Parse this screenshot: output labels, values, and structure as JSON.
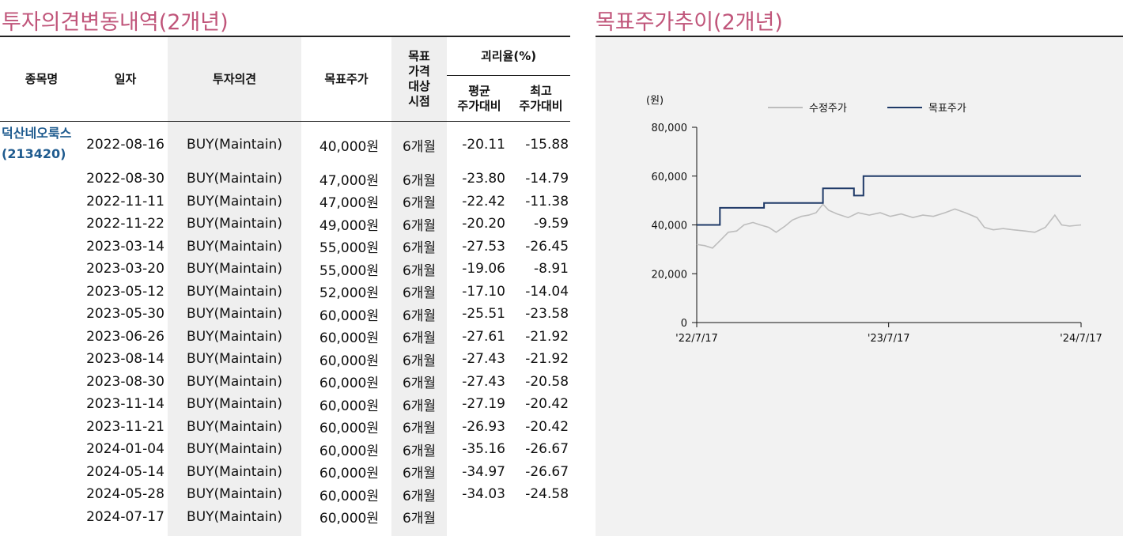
{
  "left_section": {
    "title": "투자의견변동내역(2개년)"
  },
  "right_section": {
    "title": "목표주가추이(2개년)"
  },
  "table": {
    "headers": {
      "name": "종목명",
      "date": "일자",
      "opinion": "투자의견",
      "target_price": "목표주가",
      "period_lines": [
        "목표",
        "가격",
        "대상",
        "시점"
      ],
      "disparity": "괴리율(%)",
      "avg_lines": [
        "평균",
        "주가대비"
      ],
      "max_lines": [
        "최고",
        "주가대비"
      ]
    },
    "company": {
      "name": "덕산네오룩스",
      "code": "(213420)"
    },
    "rows": [
      {
        "date": "2022-08-16",
        "opinion": "BUY(Maintain)",
        "target": "40,000원",
        "period": "6개월",
        "avg": "-20.11",
        "max": "-15.88"
      },
      {
        "date": "2022-08-30",
        "opinion": "BUY(Maintain)",
        "target": "47,000원",
        "period": "6개월",
        "avg": "-23.80",
        "max": "-14.79"
      },
      {
        "date": "2022-11-11",
        "opinion": "BUY(Maintain)",
        "target": "47,000원",
        "period": "6개월",
        "avg": "-22.42",
        "max": "-11.38"
      },
      {
        "date": "2022-11-22",
        "opinion": "BUY(Maintain)",
        "target": "49,000원",
        "period": "6개월",
        "avg": "-20.20",
        "max": "-9.59"
      },
      {
        "date": "2023-03-14",
        "opinion": "BUY(Maintain)",
        "target": "55,000원",
        "period": "6개월",
        "avg": "-27.53",
        "max": "-26.45"
      },
      {
        "date": "2023-03-20",
        "opinion": "BUY(Maintain)",
        "target": "55,000원",
        "period": "6개월",
        "avg": "-19.06",
        "max": "-8.91"
      },
      {
        "date": "2023-05-12",
        "opinion": "BUY(Maintain)",
        "target": "52,000원",
        "period": "6개월",
        "avg": "-17.10",
        "max": "-14.04"
      },
      {
        "date": "2023-05-30",
        "opinion": "BUY(Maintain)",
        "target": "60,000원",
        "period": "6개월",
        "avg": "-25.51",
        "max": "-23.58"
      },
      {
        "date": "2023-06-26",
        "opinion": "BUY(Maintain)",
        "target": "60,000원",
        "period": "6개월",
        "avg": "-27.61",
        "max": "-21.92"
      },
      {
        "date": "2023-08-14",
        "opinion": "BUY(Maintain)",
        "target": "60,000원",
        "period": "6개월",
        "avg": "-27.43",
        "max": "-21.92"
      },
      {
        "date": "2023-08-30",
        "opinion": "BUY(Maintain)",
        "target": "60,000원",
        "period": "6개월",
        "avg": "-27.43",
        "max": "-20.58"
      },
      {
        "date": "2023-11-14",
        "opinion": "BUY(Maintain)",
        "target": "60,000원",
        "period": "6개월",
        "avg": "-27.19",
        "max": "-20.42"
      },
      {
        "date": "2023-11-21",
        "opinion": "BUY(Maintain)",
        "target": "60,000원",
        "period": "6개월",
        "avg": "-26.93",
        "max": "-20.42"
      },
      {
        "date": "2024-01-04",
        "opinion": "BUY(Maintain)",
        "target": "60,000원",
        "period": "6개월",
        "avg": "-35.16",
        "max": "-26.67"
      },
      {
        "date": "2024-05-14",
        "opinion": "BUY(Maintain)",
        "target": "60,000원",
        "period": "6개월",
        "avg": "-34.97",
        "max": "-26.67"
      },
      {
        "date": "2024-05-28",
        "opinion": "BUY(Maintain)",
        "target": "60,000원",
        "period": "6개월",
        "avg": "-34.03",
        "max": "-24.58"
      },
      {
        "date": "2024-07-17",
        "opinion": "BUY(Maintain)",
        "target": "60,000원",
        "period": "6개월",
        "avg": "",
        "max": ""
      }
    ]
  },
  "colors": {
    "title": "#c0557a",
    "company": "#1f5b8f",
    "target_line": "#1f3a68",
    "price_line": "#bdbdbd",
    "chart_bg": "#f2f2f2",
    "shade": "#efefef"
  },
  "chart_data": {
    "type": "line",
    "ylabel": "(원)",
    "ylim": [
      0,
      80000
    ],
    "yticks": [
      0,
      20000,
      40000,
      60000,
      80000
    ],
    "ytick_labels": [
      "0",
      "20,000",
      "40,000",
      "60,000",
      "80,000"
    ],
    "xlim": [
      "2022-07-17",
      "2024-07-17"
    ],
    "xticks": [
      "2022-07-17",
      "2023-07-17",
      "2024-07-17"
    ],
    "xtick_labels": [
      "'22/7/17",
      "'23/7/17",
      "'24/7/17"
    ],
    "legend_position": "top",
    "series": [
      {
        "name": "수정주가",
        "color": "#bdbdbd",
        "points": [
          [
            "2022-07-17",
            32000
          ],
          [
            "2022-08-01",
            31500
          ],
          [
            "2022-08-16",
            30500
          ],
          [
            "2022-08-30",
            33500
          ],
          [
            "2022-09-15",
            37000
          ],
          [
            "2022-10-01",
            37500
          ],
          [
            "2022-10-15",
            40000
          ],
          [
            "2022-11-01",
            41000
          ],
          [
            "2022-11-15",
            40000
          ],
          [
            "2022-12-01",
            39000
          ],
          [
            "2022-12-15",
            37000
          ],
          [
            "2023-01-01",
            39500
          ],
          [
            "2023-01-15",
            42000
          ],
          [
            "2023-02-01",
            43500
          ],
          [
            "2023-02-15",
            44000
          ],
          [
            "2023-03-01",
            45000
          ],
          [
            "2023-03-14",
            48500
          ],
          [
            "2023-03-25",
            46000
          ],
          [
            "2023-04-10",
            44500
          ],
          [
            "2023-05-01",
            43000
          ],
          [
            "2023-05-20",
            45000
          ],
          [
            "2023-06-10",
            44000
          ],
          [
            "2023-07-01",
            45000
          ],
          [
            "2023-07-20",
            43500
          ],
          [
            "2023-08-10",
            44500
          ],
          [
            "2023-09-01",
            43000
          ],
          [
            "2023-09-20",
            44000
          ],
          [
            "2023-10-10",
            43500
          ],
          [
            "2023-11-01",
            45000
          ],
          [
            "2023-11-20",
            46500
          ],
          [
            "2023-12-10",
            45000
          ],
          [
            "2024-01-01",
            43000
          ],
          [
            "2024-01-15",
            39000
          ],
          [
            "2024-02-01",
            38000
          ],
          [
            "2024-02-20",
            38500
          ],
          [
            "2024-03-10",
            38000
          ],
          [
            "2024-04-01",
            37500
          ],
          [
            "2024-04-20",
            37000
          ],
          [
            "2024-05-10",
            39000
          ],
          [
            "2024-05-28",
            44000
          ],
          [
            "2024-06-10",
            40000
          ],
          [
            "2024-06-25",
            39500
          ],
          [
            "2024-07-17",
            40000
          ]
        ]
      },
      {
        "name": "목표주가",
        "color": "#1f3a68",
        "steps": [
          [
            "2022-07-17",
            40000
          ],
          [
            "2022-08-30",
            47000
          ],
          [
            "2022-11-22",
            49000
          ],
          [
            "2023-03-14",
            55000
          ],
          [
            "2023-05-12",
            52000
          ],
          [
            "2023-05-30",
            60000
          ],
          [
            "2024-07-17",
            60000
          ]
        ]
      }
    ]
  }
}
